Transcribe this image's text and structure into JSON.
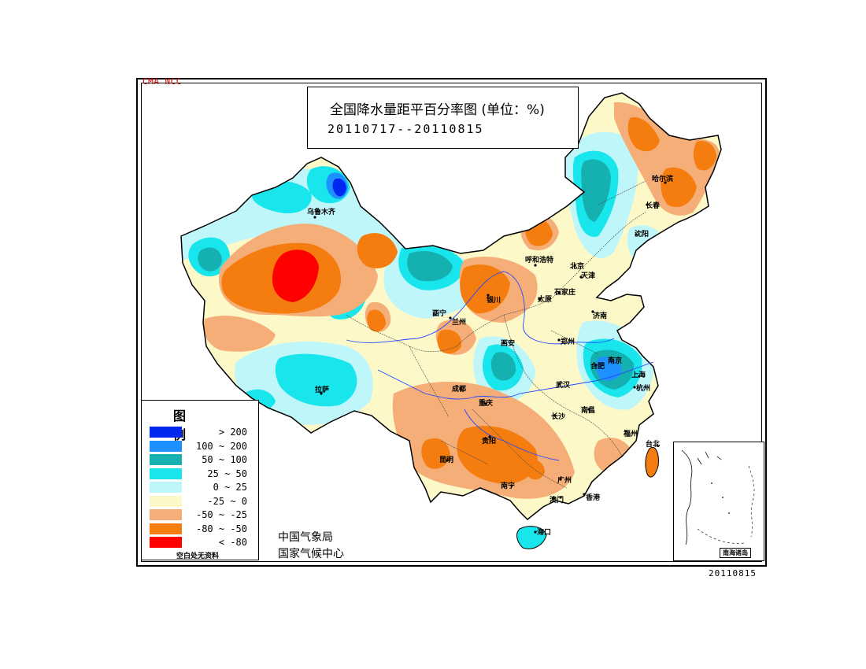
{
  "credit": "CMA NCC",
  "title": "全国降水量距平百分率图 (单位：%)",
  "period": "20110717--20110815",
  "date_stamp": "20110815",
  "organization": [
    "中国气象局",
    "国家气候中心"
  ],
  "legend": {
    "title": "图 例",
    "items": [
      {
        "label": "> 200",
        "color": "#0028f0"
      },
      {
        "label": "100 ~ 200",
        "color": "#1e90ff"
      },
      {
        "label": "50 ~ 100",
        "color": "#15b0b0"
      },
      {
        "label": "25 ~ 50",
        "color": "#18e6ec"
      },
      {
        "label": "0 ~ 25",
        "color": "#bff6fa"
      },
      {
        "label": "-25 ~ 0",
        "color": "#fdf8c8"
      },
      {
        "label": "-50 ~ -25",
        "color": "#f5ae78"
      },
      {
        "label": "-80 ~ -50",
        "color": "#f57d10"
      },
      {
        "label": "< -80",
        "color": "#ff0000"
      }
    ],
    "note": "空白处无资料"
  },
  "inset_label": "南海诸岛",
  "cities": [
    "乌鲁木齐",
    "哈尔滨",
    "长春",
    "沈阳",
    "呼和浩特",
    "北京",
    "天津",
    "石家庄",
    "太原",
    "银川",
    "济南",
    "西宁",
    "兰州",
    "西安",
    "郑州",
    "合肥",
    "南京",
    "上海",
    "杭州",
    "武汉",
    "拉萨",
    "成都",
    "重庆",
    "长沙",
    "南昌",
    "福州",
    "贵阳",
    "昆明",
    "南宁",
    "广州",
    "澳门",
    "香港",
    "海口",
    "台北"
  ]
}
